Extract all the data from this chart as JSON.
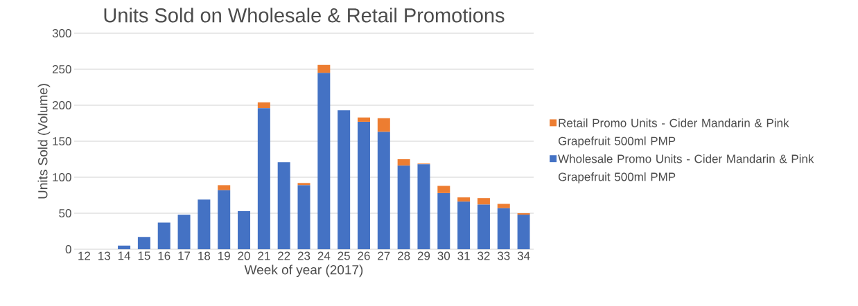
{
  "chart_data": {
    "type": "bar",
    "stacked": true,
    "title": "Units Sold on Wholesale & Retail Promotions",
    "xlabel": "Week of year (2017)",
    "ylabel": "Units Sold (Volume)",
    "categories": [
      "12",
      "13",
      "14",
      "15",
      "16",
      "17",
      "18",
      "19",
      "20",
      "21",
      "22",
      "23",
      "24",
      "25",
      "26",
      "27",
      "28",
      "29",
      "30",
      "31",
      "32",
      "33",
      "34"
    ],
    "series": [
      {
        "name": "Wholesale Promo Units - Cider Mandarin & Pink Grapefruit 500ml PMP",
        "color": "#4472c4",
        "values": [
          0,
          0,
          5,
          17,
          37,
          48,
          69,
          82,
          53,
          196,
          121,
          89,
          245,
          193,
          177,
          163,
          116,
          118,
          78,
          66,
          62,
          57,
          48
        ]
      },
      {
        "name": "Retail Promo Units - Cider Mandarin & Pink Grapefruit 500ml PMP",
        "color": "#ed7d31",
        "values": [
          0,
          0,
          0,
          0,
          0,
          0,
          0,
          7,
          0,
          8,
          0,
          3,
          11,
          0,
          6,
          19,
          9,
          1,
          10,
          6,
          9,
          6,
          2
        ]
      }
    ],
    "ylim": [
      0,
      300
    ],
    "yticks": [
      0,
      50,
      100,
      150,
      200,
      250,
      300
    ],
    "grid": "y",
    "legend": "right"
  }
}
